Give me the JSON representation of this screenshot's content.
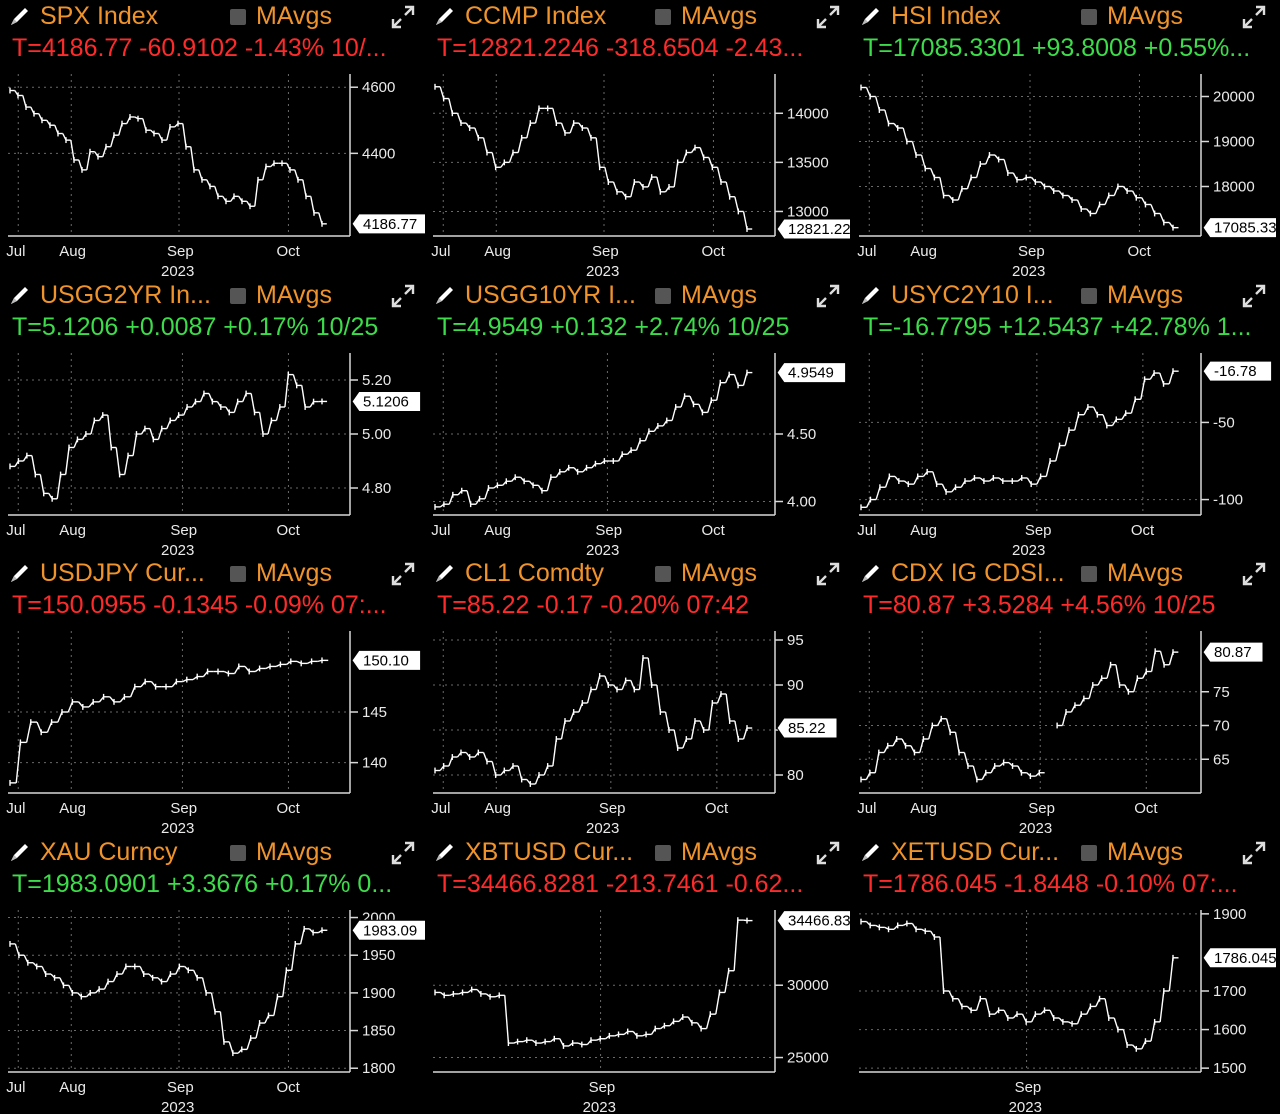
{
  "panels": [
    {
      "ticker": "SPX Index",
      "ma_label": "MAvgs",
      "quote": "T=4186.77 -60.9102 -1.43% 10/...",
      "quote_color": "down",
      "xticks": [
        {
          "label": "Jul",
          "pos": 0.03
        },
        {
          "label": "Aug",
          "pos": 0.185
        },
        {
          "label": "Sep",
          "pos": 0.5
        },
        {
          "label": "Oct",
          "pos": 0.82
        }
      ],
      "xyear": "2023",
      "year_pos": 0.5,
      "yticks": [
        {
          "label": "4600",
          "v": 4600
        },
        {
          "label": "4400",
          "v": 4400
        }
      ],
      "ylim": [
        4150,
        4640
      ],
      "last_label": "4186.77",
      "last_value": 4186.77,
      "chart_data": {
        "type": "line",
        "x_range": [
          "2023-06-27",
          "2023-10-26"
        ],
        "values": [
          4590,
          4575,
          4540,
          4520,
          4500,
          4485,
          4460,
          4440,
          4380,
          4350,
          4405,
          4390,
          4420,
          4455,
          4490,
          4510,
          4505,
          4470,
          4460,
          4440,
          4480,
          4490,
          4420,
          4350,
          4320,
          4300,
          4270,
          4255,
          4270,
          4255,
          4240,
          4320,
          4360,
          4370,
          4370,
          4350,
          4320,
          4270,
          4220,
          4186.77
        ]
      }
    },
    {
      "ticker": "CCMP Index",
      "ma_label": "MAvgs",
      "quote": "T=12821.2246 -318.6504 -2.43...",
      "quote_color": "down",
      "xticks": [
        {
          "label": "Jul",
          "pos": 0.03
        },
        {
          "label": "Aug",
          "pos": 0.185
        },
        {
          "label": "Sep",
          "pos": 0.5
        },
        {
          "label": "Oct",
          "pos": 0.82
        }
      ],
      "xyear": "2023",
      "year_pos": 0.5,
      "yticks": [
        {
          "label": "14000",
          "v": 14000
        },
        {
          "label": "13500",
          "v": 13500
        },
        {
          "label": "13000",
          "v": 13000
        }
      ],
      "ylim": [
        12750,
        14400
      ],
      "last_label": "12821.22",
      "last_value": 12821.22,
      "chart_data": {
        "type": "line",
        "x_range": [
          "2023-06-27",
          "2023-10-26"
        ],
        "values": [
          14270,
          14150,
          14000,
          13900,
          13850,
          13750,
          13600,
          13450,
          13500,
          13600,
          13750,
          13900,
          14050,
          14050,
          13900,
          13800,
          13900,
          13850,
          13750,
          13450,
          13300,
          13200,
          13150,
          13300,
          13250,
          13350,
          13200,
          13250,
          13500,
          13600,
          13650,
          13550,
          13450,
          13300,
          13150,
          13000,
          12821.22
        ]
      }
    },
    {
      "ticker": "HSI Index",
      "ma_label": "MAvgs",
      "quote": "T=17085.3301 +93.8008 +0.55%...",
      "quote_color": "up",
      "xticks": [
        {
          "label": "Jul",
          "pos": 0.03
        },
        {
          "label": "Aug",
          "pos": 0.185
        },
        {
          "label": "Sep",
          "pos": 0.5
        },
        {
          "label": "Oct",
          "pos": 0.82
        }
      ],
      "xyear": "2023",
      "year_pos": 0.5,
      "yticks": [
        {
          "label": "20000",
          "v": 20000
        },
        {
          "label": "19000",
          "v": 19000
        },
        {
          "label": "18000",
          "v": 18000
        }
      ],
      "ylim": [
        16900,
        20500
      ],
      "last_label": "17085.33",
      "last_value": 17085.33,
      "chart_data": {
        "type": "line",
        "x_range": [
          "2023-06-27",
          "2023-10-26"
        ],
        "values": [
          20200,
          20000,
          19700,
          19400,
          19300,
          19000,
          18700,
          18400,
          18200,
          17800,
          17700,
          17950,
          18200,
          18500,
          18700,
          18600,
          18300,
          18150,
          18200,
          18100,
          18000,
          17900,
          17800,
          17700,
          17500,
          17400,
          17600,
          17800,
          18000,
          17900,
          17750,
          17600,
          17400,
          17200,
          17085.33
        ]
      }
    },
    {
      "ticker": "USGG2YR In...",
      "ma_label": "MAvgs",
      "quote": "T=5.1206 +0.0087 +0.17% 10/25",
      "quote_color": "up",
      "xticks": [
        {
          "label": "Jul",
          "pos": 0.03
        },
        {
          "label": "Aug",
          "pos": 0.185
        },
        {
          "label": "Sep",
          "pos": 0.51
        },
        {
          "label": "Oct",
          "pos": 0.82
        }
      ],
      "xyear": "2023",
      "year_pos": 0.5,
      "yticks": [
        {
          "label": "5.20",
          "v": 5.2
        },
        {
          "label": "5.00",
          "v": 5.0
        },
        {
          "label": "4.80",
          "v": 4.8
        }
      ],
      "ylim": [
        4.7,
        5.3
      ],
      "last_label": "5.1206",
      "last_value": 5.1206,
      "chart_data": {
        "type": "line",
        "x_range": [
          "2023-06-27",
          "2023-10-26"
        ],
        "values": [
          4.88,
          4.9,
          4.92,
          4.85,
          4.78,
          4.76,
          4.85,
          4.95,
          4.98,
          5.0,
          5.05,
          5.07,
          4.95,
          4.85,
          4.92,
          5.0,
          5.02,
          4.98,
          5.02,
          5.05,
          5.07,
          5.1,
          5.12,
          5.15,
          5.12,
          5.1,
          5.08,
          5.12,
          5.15,
          5.08,
          5.0,
          5.05,
          5.1,
          5.22,
          5.18,
          5.1,
          5.12,
          5.1206
        ]
      }
    },
    {
      "ticker": "USGG10YR I...",
      "ma_label": "MAvgs",
      "quote": "T=4.9549 +0.132 +2.74% 10/25",
      "quote_color": "up",
      "xticks": [
        {
          "label": "Jul",
          "pos": 0.03
        },
        {
          "label": "Aug",
          "pos": 0.185
        },
        {
          "label": "Sep",
          "pos": 0.51
        },
        {
          "label": "Oct",
          "pos": 0.82
        }
      ],
      "xyear": "2023",
      "year_pos": 0.5,
      "yticks": [
        {
          "label": "4.50",
          "v": 4.5
        },
        {
          "label": "4.00",
          "v": 4.0
        }
      ],
      "ylim": [
        3.9,
        5.1
      ],
      "last_label": "4.9549",
      "last_value": 4.9549,
      "chart_data": {
        "type": "line",
        "x_range": [
          "2023-06-27",
          "2023-10-26"
        ],
        "values": [
          3.96,
          3.98,
          4.05,
          4.08,
          3.98,
          4.02,
          4.1,
          4.12,
          4.15,
          4.18,
          4.15,
          4.12,
          4.08,
          4.18,
          4.22,
          4.25,
          4.22,
          4.25,
          4.28,
          4.3,
          4.3,
          4.35,
          4.38,
          4.45,
          4.52,
          4.56,
          4.6,
          4.7,
          4.78,
          4.72,
          4.66,
          4.75,
          4.88,
          4.94,
          4.86,
          4.9549
        ]
      }
    },
    {
      "ticker": "USYC2Y10 I...",
      "ma_label": "MAvgs",
      "quote": "T=-16.7795 +12.5437 +42.78% 1...",
      "quote_color": "up",
      "xticks": [
        {
          "label": "Jul",
          "pos": 0.03
        },
        {
          "label": "Aug",
          "pos": 0.185
        },
        {
          "label": "Sep",
          "pos": 0.52
        },
        {
          "label": "Oct",
          "pos": 0.83
        }
      ],
      "xyear": "2023",
      "year_pos": 0.5,
      "yticks": [
        {
          "label": "-50",
          "v": -50
        },
        {
          "label": "-100",
          "v": -100
        }
      ],
      "ylim": [
        -110,
        -5
      ],
      "last_label": "-16.78",
      "last_value": -16.78,
      "chart_data": {
        "type": "line",
        "x_range": [
          "2023-06-27",
          "2023-10-26"
        ],
        "values": [
          -105,
          -100,
          -92,
          -85,
          -88,
          -90,
          -85,
          -82,
          -90,
          -95,
          -92,
          -88,
          -86,
          -88,
          -86,
          -88,
          -88,
          -86,
          -90,
          -85,
          -75,
          -65,
          -55,
          -45,
          -40,
          -45,
          -52,
          -48,
          -44,
          -35,
          -22,
          -18,
          -25,
          -16.78
        ]
      }
    },
    {
      "ticker": "USDJPY Cur...",
      "ma_label": "MAvgs",
      "quote": "T=150.0955 -0.1345 -0.09% 07:...",
      "quote_color": "down",
      "xticks": [
        {
          "label": "Jul",
          "pos": 0.03
        },
        {
          "label": "Aug",
          "pos": 0.185
        },
        {
          "label": "Sep",
          "pos": 0.51
        },
        {
          "label": "Oct",
          "pos": 0.82
        }
      ],
      "xyear": "2023",
      "year_pos": 0.5,
      "yticks": [
        {
          "label": "145",
          "v": 145
        },
        {
          "label": "140",
          "v": 140
        }
      ],
      "ylim": [
        137,
        153
      ],
      "last_label": "150.10",
      "last_value": 150.1,
      "chart_data": {
        "type": "line",
        "x_range": [
          "2023-06-27",
          "2023-10-26"
        ],
        "values": [
          138,
          142,
          144,
          143,
          144,
          145,
          146,
          145.5,
          146,
          146.5,
          146,
          146.5,
          147.5,
          148,
          147.5,
          147.5,
          148,
          148.2,
          148.5,
          149,
          149,
          148.8,
          149.5,
          149,
          149.3,
          149.5,
          149.7,
          150,
          149.8,
          150,
          150.1
        ]
      }
    },
    {
      "ticker": "CL1 Comdty",
      "ma_label": "MAvgs",
      "quote": "T=85.22 -0.17 -0.20% 07:42",
      "quote_color": "down",
      "xticks": [
        {
          "label": "Jul",
          "pos": 0.03
        },
        {
          "label": "Aug",
          "pos": 0.185
        },
        {
          "label": "Sep",
          "pos": 0.52
        },
        {
          "label": "Oct",
          "pos": 0.83
        }
      ],
      "xyear": "2023",
      "year_pos": 0.5,
      "yticks": [
        {
          "label": "95",
          "v": 95
        },
        {
          "label": "90",
          "v": 90
        },
        {
          "label": "85",
          "v": 85
        },
        {
          "label": "80",
          "v": 80
        }
      ],
      "ylim": [
        78,
        96
      ],
      "last_label": "85.22",
      "last_value": 85.22,
      "chart_data": {
        "type": "line",
        "x_range": [
          "2023-06-27",
          "2023-10-26"
        ],
        "values": [
          80.5,
          81,
          82,
          82.5,
          82,
          82.5,
          81.5,
          80,
          80.5,
          81,
          79.5,
          79,
          80,
          81,
          84,
          86,
          87,
          88,
          89.5,
          91,
          90,
          89.5,
          90.5,
          89.5,
          93,
          90,
          87,
          85,
          83,
          84,
          86,
          85,
          88,
          89,
          86,
          84,
          85.22
        ]
      }
    },
    {
      "ticker": "CDX IG CDSI...",
      "ma_label": "MAvgs",
      "quote": "T=80.87 +3.5284 +4.56% 10/25",
      "quote_color": "down",
      "xticks": [
        {
          "label": "Jul",
          "pos": 0.03
        },
        {
          "label": "Aug",
          "pos": 0.185
        },
        {
          "label": "Sep",
          "pos": 0.53
        },
        {
          "label": "Oct",
          "pos": 0.84
        }
      ],
      "xyear": "2023",
      "year_pos": 0.52,
      "yticks": [
        {
          "label": "75",
          "v": 75
        },
        {
          "label": "70",
          "v": 70
        },
        {
          "label": "65",
          "v": 65
        }
      ],
      "ylim": [
        60,
        84
      ],
      "last_label": "80.87",
      "last_value": 80.87,
      "chart_data": {
        "type": "line",
        "x_range": [
          "2023-06-27",
          "2023-10-26"
        ],
        "values": [
          62,
          63,
          66,
          67,
          68,
          67,
          66,
          68,
          70,
          71,
          69,
          66,
          64,
          62,
          63,
          64,
          64.5,
          64,
          63,
          62.5,
          63,
          null,
          70,
          72,
          73,
          74,
          76,
          77,
          79,
          76,
          75,
          77,
          78,
          81,
          79,
          80.87
        ]
      }
    },
    {
      "ticker": "XAU Curncy",
      "ma_label": "MAvgs",
      "quote": "T=1983.0901 +3.3676 +0.17% 0...",
      "quote_color": "up",
      "xticks": [
        {
          "label": "Jul",
          "pos": 0.03
        },
        {
          "label": "Aug",
          "pos": 0.185
        },
        {
          "label": "Sep",
          "pos": 0.5
        },
        {
          "label": "Oct",
          "pos": 0.82
        }
      ],
      "xyear": "2023",
      "year_pos": 0.5,
      "yticks": [
        {
          "label": "2000",
          "v": 2000
        },
        {
          "label": "1950",
          "v": 1950
        },
        {
          "label": "1900",
          "v": 1900
        },
        {
          "label": "1850",
          "v": 1850
        },
        {
          "label": "1800",
          "v": 1800
        }
      ],
      "ylim": [
        1795,
        2010
      ],
      "last_label": "1983.09",
      "last_value": 1983.09,
      "chart_data": {
        "type": "line",
        "x_range": [
          "2023-06-27",
          "2023-10-26"
        ],
        "values": [
          1965,
          1950,
          1940,
          1935,
          1925,
          1920,
          1910,
          1900,
          1895,
          1900,
          1905,
          1915,
          1925,
          1935,
          1935,
          1925,
          1920,
          1915,
          1925,
          1935,
          1930,
          1920,
          1900,
          1875,
          1835,
          1820,
          1825,
          1840,
          1860,
          1870,
          1895,
          1930,
          1965,
          1985,
          1980,
          1983.09
        ]
      }
    },
    {
      "ticker": "XBTUSD Cur...",
      "ma_label": "MAvgs",
      "quote": "T=34466.8281 -213.7461 -0.62...",
      "quote_color": "down",
      "xticks": [
        {
          "label": "Sep",
          "pos": 0.49
        }
      ],
      "xyear": "2023",
      "year_pos": 0.49,
      "yticks": [
        {
          "label": "30000",
          "v": 30000
        },
        {
          "label": "25000",
          "v": 25000
        }
      ],
      "ylim": [
        24000,
        35200
      ],
      "last_label": "34466.83",
      "last_value": 34466.83,
      "chart_data": {
        "type": "line",
        "x_range": [
          "2023-06-27",
          "2023-10-26"
        ],
        "values": [
          29500,
          29300,
          29400,
          29500,
          29700,
          29400,
          29200,
          29300,
          26000,
          26100,
          26200,
          26000,
          26100,
          26300,
          25800,
          26000,
          25900,
          26200,
          26300,
          26500,
          26600,
          26800,
          26500,
          26600,
          27000,
          27200,
          27500,
          27800,
          27400,
          27000,
          28000,
          29500,
          31000,
          34500,
          34466.83
        ]
      }
    },
    {
      "ticker": "XETUSD Cur...",
      "ma_label": "MAvgs",
      "quote": "T=1786.045 -1.8448 -0.10% 07:...",
      "quote_color": "down",
      "xticks": [
        {
          "label": "Sep",
          "pos": 0.49
        }
      ],
      "xyear": "2023",
      "year_pos": 0.49,
      "yticks": [
        {
          "label": "1900",
          "v": 1900
        },
        {
          "label": "1700",
          "v": 1700
        },
        {
          "label": "1600",
          "v": 1600
        },
        {
          "label": "1500",
          "v": 1500
        }
      ],
      "ylim": [
        1490,
        1910
      ],
      "last_label": "1786.045",
      "last_value": 1786.045,
      "chart_data": {
        "type": "line",
        "x_range": [
          "2023-06-27",
          "2023-10-26"
        ],
        "values": [
          1880,
          1870,
          1865,
          1860,
          1870,
          1875,
          1860,
          1855,
          1840,
          1700,
          1680,
          1660,
          1650,
          1680,
          1640,
          1650,
          1630,
          1640,
          1620,
          1640,
          1650,
          1630,
          1620,
          1615,
          1640,
          1660,
          1680,
          1630,
          1600,
          1560,
          1550,
          1570,
          1620,
          1700,
          1786.045
        ]
      }
    }
  ]
}
